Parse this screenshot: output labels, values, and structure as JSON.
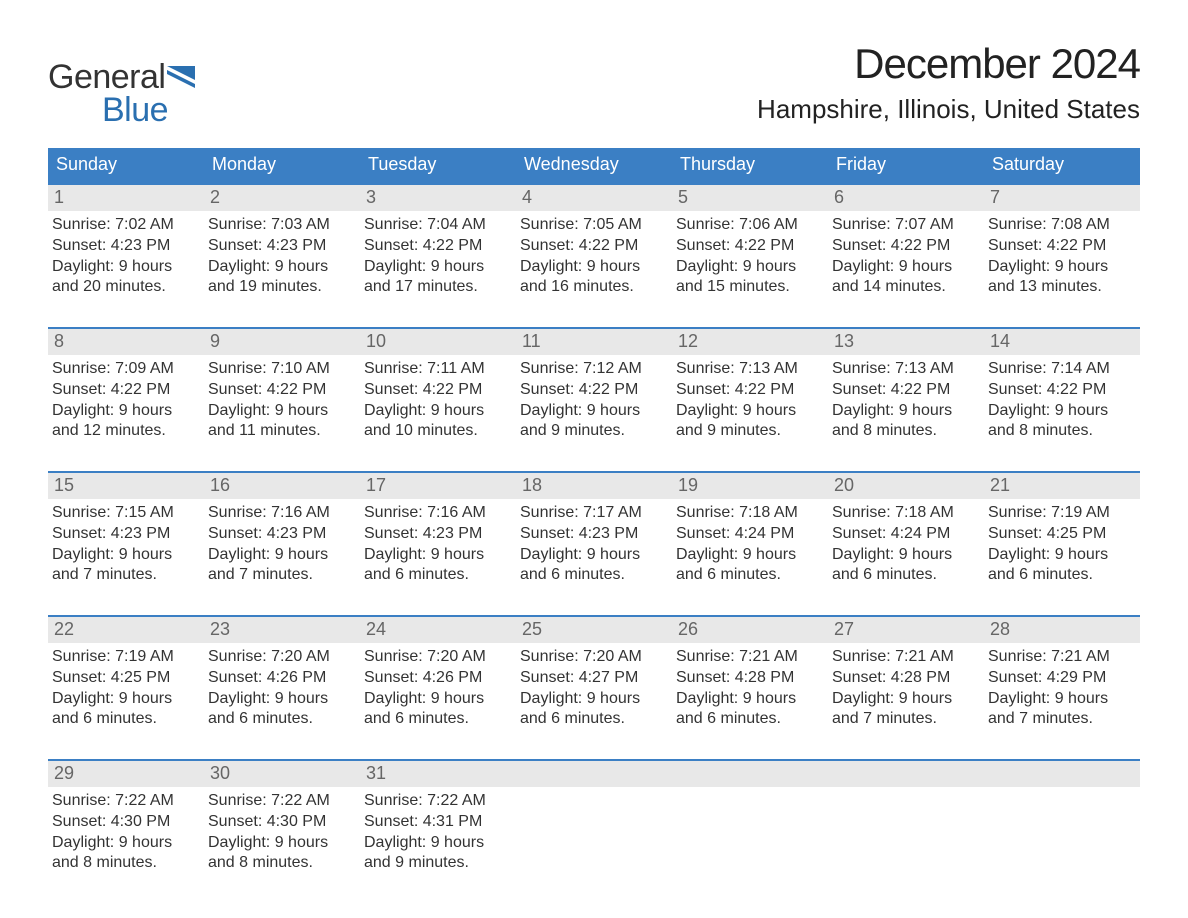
{
  "logo": {
    "word1": "General",
    "word2": "Blue",
    "text_color": "#333333",
    "accent_color": "#2a6fb0"
  },
  "header": {
    "month_title": "December 2024",
    "location": "Hampshire, Illinois, United States"
  },
  "colors": {
    "header_bar": "#3b7fc4",
    "header_text": "#ffffff",
    "daynum_bg": "#e8e8e8",
    "daynum_text": "#666666",
    "body_text": "#333333",
    "week_border": "#3b7fc4",
    "background": "#ffffff"
  },
  "typography": {
    "month_title_fontsize": 42,
    "location_fontsize": 26,
    "weekday_fontsize": 18,
    "daynum_fontsize": 18,
    "detail_fontsize": 16,
    "logo_fontsize": 34
  },
  "weekdays": [
    "Sunday",
    "Monday",
    "Tuesday",
    "Wednesday",
    "Thursday",
    "Friday",
    "Saturday"
  ],
  "labels": {
    "sunrise": "Sunrise:",
    "sunset": "Sunset:",
    "daylight_prefix": "Daylight:",
    "and": "and",
    "hours": "hours",
    "minutes": "minutes."
  },
  "weeks": [
    [
      {
        "day": "1",
        "sunrise": "7:02 AM",
        "sunset": "4:23 PM",
        "dl_h": "9",
        "dl_m": "20"
      },
      {
        "day": "2",
        "sunrise": "7:03 AM",
        "sunset": "4:23 PM",
        "dl_h": "9",
        "dl_m": "19"
      },
      {
        "day": "3",
        "sunrise": "7:04 AM",
        "sunset": "4:22 PM",
        "dl_h": "9",
        "dl_m": "17"
      },
      {
        "day": "4",
        "sunrise": "7:05 AM",
        "sunset": "4:22 PM",
        "dl_h": "9",
        "dl_m": "16"
      },
      {
        "day": "5",
        "sunrise": "7:06 AM",
        "sunset": "4:22 PM",
        "dl_h": "9",
        "dl_m": "15"
      },
      {
        "day": "6",
        "sunrise": "7:07 AM",
        "sunset": "4:22 PM",
        "dl_h": "9",
        "dl_m": "14"
      },
      {
        "day": "7",
        "sunrise": "7:08 AM",
        "sunset": "4:22 PM",
        "dl_h": "9",
        "dl_m": "13"
      }
    ],
    [
      {
        "day": "8",
        "sunrise": "7:09 AM",
        "sunset": "4:22 PM",
        "dl_h": "9",
        "dl_m": "12"
      },
      {
        "day": "9",
        "sunrise": "7:10 AM",
        "sunset": "4:22 PM",
        "dl_h": "9",
        "dl_m": "11"
      },
      {
        "day": "10",
        "sunrise": "7:11 AM",
        "sunset": "4:22 PM",
        "dl_h": "9",
        "dl_m": "10"
      },
      {
        "day": "11",
        "sunrise": "7:12 AM",
        "sunset": "4:22 PM",
        "dl_h": "9",
        "dl_m": "9"
      },
      {
        "day": "12",
        "sunrise": "7:13 AM",
        "sunset": "4:22 PM",
        "dl_h": "9",
        "dl_m": "9"
      },
      {
        "day": "13",
        "sunrise": "7:13 AM",
        "sunset": "4:22 PM",
        "dl_h": "9",
        "dl_m": "8"
      },
      {
        "day": "14",
        "sunrise": "7:14 AM",
        "sunset": "4:22 PM",
        "dl_h": "9",
        "dl_m": "8"
      }
    ],
    [
      {
        "day": "15",
        "sunrise": "7:15 AM",
        "sunset": "4:23 PM",
        "dl_h": "9",
        "dl_m": "7"
      },
      {
        "day": "16",
        "sunrise": "7:16 AM",
        "sunset": "4:23 PM",
        "dl_h": "9",
        "dl_m": "7"
      },
      {
        "day": "17",
        "sunrise": "7:16 AM",
        "sunset": "4:23 PM",
        "dl_h": "9",
        "dl_m": "6"
      },
      {
        "day": "18",
        "sunrise": "7:17 AM",
        "sunset": "4:23 PM",
        "dl_h": "9",
        "dl_m": "6"
      },
      {
        "day": "19",
        "sunrise": "7:18 AM",
        "sunset": "4:24 PM",
        "dl_h": "9",
        "dl_m": "6"
      },
      {
        "day": "20",
        "sunrise": "7:18 AM",
        "sunset": "4:24 PM",
        "dl_h": "9",
        "dl_m": "6"
      },
      {
        "day": "21",
        "sunrise": "7:19 AM",
        "sunset": "4:25 PM",
        "dl_h": "9",
        "dl_m": "6"
      }
    ],
    [
      {
        "day": "22",
        "sunrise": "7:19 AM",
        "sunset": "4:25 PM",
        "dl_h": "9",
        "dl_m": "6"
      },
      {
        "day": "23",
        "sunrise": "7:20 AM",
        "sunset": "4:26 PM",
        "dl_h": "9",
        "dl_m": "6"
      },
      {
        "day": "24",
        "sunrise": "7:20 AM",
        "sunset": "4:26 PM",
        "dl_h": "9",
        "dl_m": "6"
      },
      {
        "day": "25",
        "sunrise": "7:20 AM",
        "sunset": "4:27 PM",
        "dl_h": "9",
        "dl_m": "6"
      },
      {
        "day": "26",
        "sunrise": "7:21 AM",
        "sunset": "4:28 PM",
        "dl_h": "9",
        "dl_m": "6"
      },
      {
        "day": "27",
        "sunrise": "7:21 AM",
        "sunset": "4:28 PM",
        "dl_h": "9",
        "dl_m": "7"
      },
      {
        "day": "28",
        "sunrise": "7:21 AM",
        "sunset": "4:29 PM",
        "dl_h": "9",
        "dl_m": "7"
      }
    ],
    [
      {
        "day": "29",
        "sunrise": "7:22 AM",
        "sunset": "4:30 PM",
        "dl_h": "9",
        "dl_m": "8"
      },
      {
        "day": "30",
        "sunrise": "7:22 AM",
        "sunset": "4:30 PM",
        "dl_h": "9",
        "dl_m": "8"
      },
      {
        "day": "31",
        "sunrise": "7:22 AM",
        "sunset": "4:31 PM",
        "dl_h": "9",
        "dl_m": "9"
      },
      {
        "empty": true
      },
      {
        "empty": true
      },
      {
        "empty": true
      },
      {
        "empty": true
      }
    ]
  ]
}
